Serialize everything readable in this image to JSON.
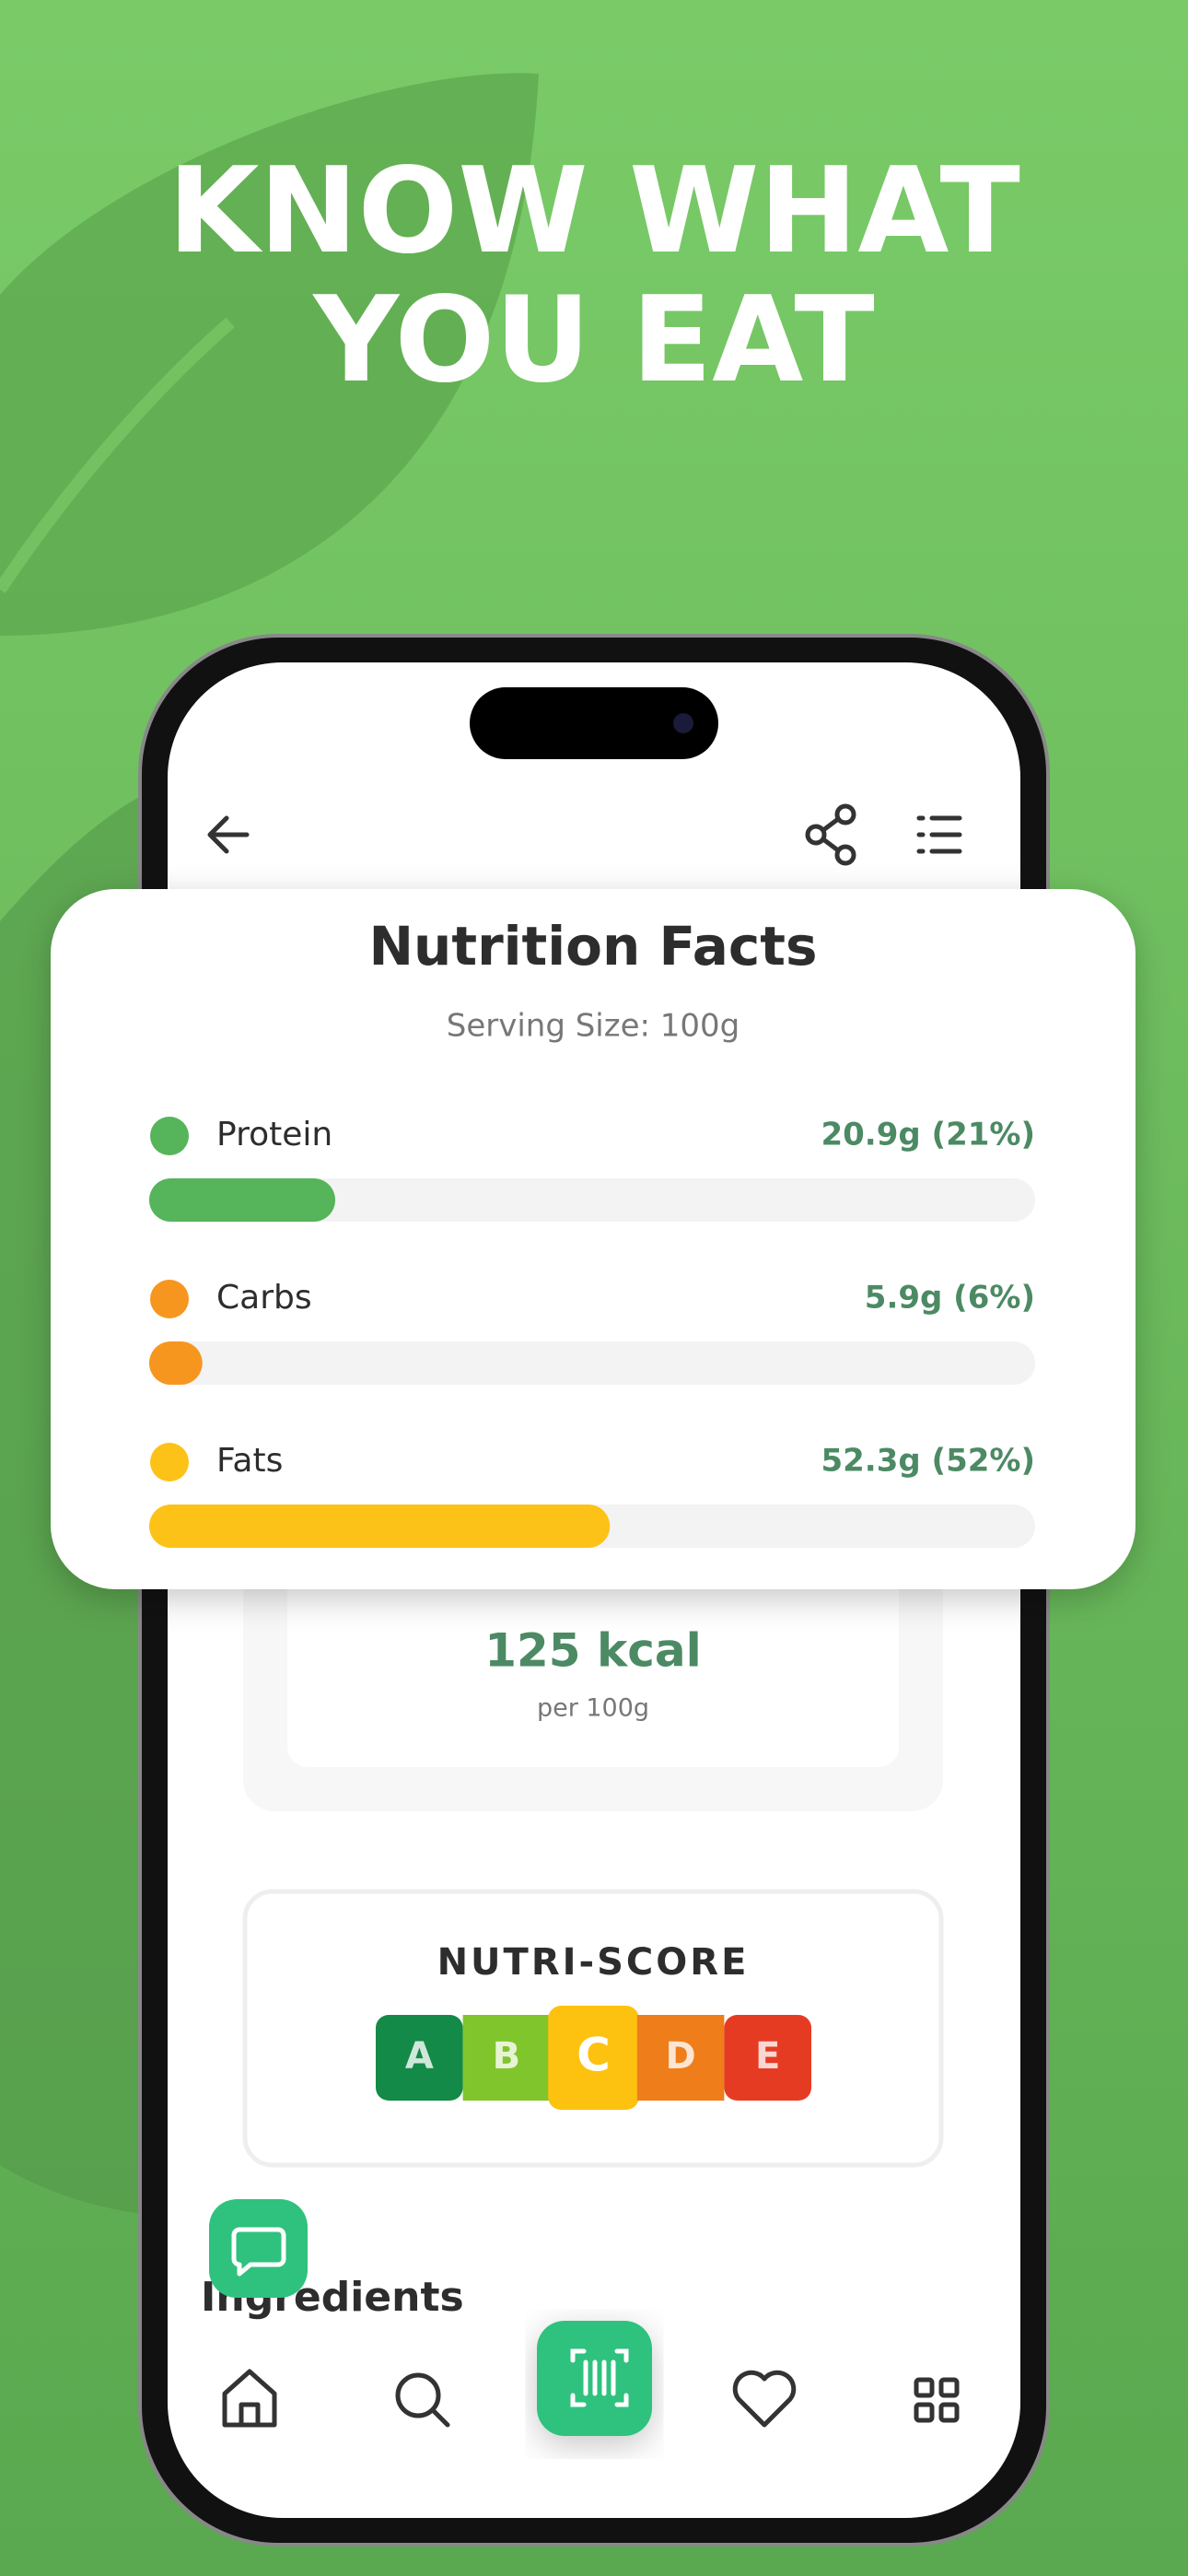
{
  "headline": [
    "KNOW WHAT",
    "YOU EAT"
  ],
  "nutrition": {
    "title": "Nutrition Facts",
    "serving": "Serving Size: 100g",
    "items": [
      {
        "name": "Protein",
        "value_label": "20.9g (21%)",
        "percent": 21,
        "color": "#56b45a"
      },
      {
        "name": "Carbs",
        "value_label": "5.9g (6%)",
        "percent": 6,
        "color": "#f7961f"
      },
      {
        "name": "Fats",
        "value_label": "52.3g (52%)",
        "percent": 52,
        "color": "#fdc217"
      }
    ]
  },
  "calories": {
    "value": "125 kcal",
    "unit": "per 100g"
  },
  "nutri_score": {
    "title": "NUTRI-SCORE",
    "grades": [
      "A",
      "B",
      "C",
      "D",
      "E"
    ],
    "selected": "C"
  },
  "ingredients": "Ingredients"
}
